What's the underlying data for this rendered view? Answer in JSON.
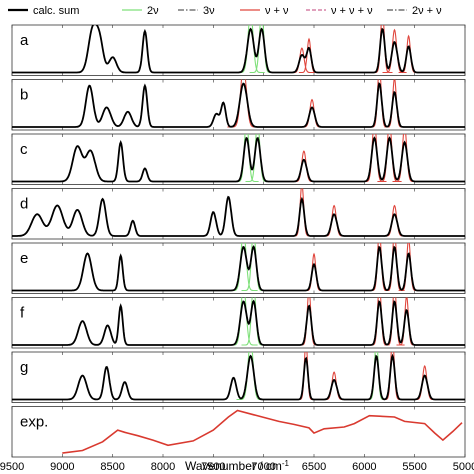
{
  "chart_data": {
    "type": "line",
    "xlabel": "Wavenumber / cm",
    "xlabel_sup": "-1",
    "xlim": [
      9500,
      5000
    ],
    "x_reversed": true,
    "x_ticks": [
      9500,
      9000,
      8500,
      8000,
      7500,
      7000,
      6500,
      6000,
      5500,
      5000
    ],
    "legend": [
      {
        "label": "calc. sum",
        "color": "#000000",
        "dash": "solid",
        "width": 2.2
      },
      {
        "label": "2ν",
        "color": "#7fe07a",
        "dash": "solid",
        "width": 1.2
      },
      {
        "label": "3ν",
        "color": "#333333",
        "dash": "dashdot",
        "width": 1.0
      },
      {
        "label": "ν + ν",
        "color": "#e0473e",
        "dash": "solid",
        "width": 1.2
      },
      {
        "label": "ν + ν + ν",
        "color": "#c0407a",
        "dash": "dashed",
        "width": 1.0
      },
      {
        "label": "2ν + ν",
        "color": "#2a2a2a",
        "dash": "dashdot",
        "width": 1.0
      }
    ],
    "panels": [
      {
        "label": "a",
        "peaks": [
          {
            "x": 8700,
            "h": 0.95,
            "w": 45,
            "c": "sum"
          },
          {
            "x": 8630,
            "h": 0.7,
            "w": 40,
            "c": "sum"
          },
          {
            "x": 8500,
            "h": 0.35,
            "w": 40,
            "c": "sum"
          },
          {
            "x": 8180,
            "h": 0.95,
            "w": 25,
            "c": "sum"
          },
          {
            "x": 7130,
            "h": 1.0,
            "w": 35,
            "c": "2v"
          },
          {
            "x": 7020,
            "h": 1.0,
            "w": 30,
            "c": "2v"
          },
          {
            "x": 6620,
            "h": 0.4,
            "w": 30,
            "c": "vv"
          },
          {
            "x": 6550,
            "h": 0.55,
            "w": 25,
            "c": "vv"
          },
          {
            "x": 5820,
            "h": 1.0,
            "w": 25,
            "c": "vv"
          },
          {
            "x": 5700,
            "h": 0.7,
            "w": 30,
            "c": "vv"
          },
          {
            "x": 5560,
            "h": 0.6,
            "w": 25,
            "c": "vv"
          }
        ]
      },
      {
        "label": "b",
        "peaks": [
          {
            "x": 8730,
            "h": 0.95,
            "w": 40,
            "c": "sum"
          },
          {
            "x": 8560,
            "h": 0.45,
            "w": 45,
            "c": "sum"
          },
          {
            "x": 8350,
            "h": 0.35,
            "w": 40,
            "c": "sum"
          },
          {
            "x": 8180,
            "h": 0.95,
            "w": 25,
            "c": "sum"
          },
          {
            "x": 7470,
            "h": 0.3,
            "w": 30,
            "c": "sum"
          },
          {
            "x": 7400,
            "h": 0.55,
            "w": 25,
            "c": "sum"
          },
          {
            "x": 7200,
            "h": 1.0,
            "w": 40,
            "c": "vv"
          },
          {
            "x": 6520,
            "h": 0.45,
            "w": 30,
            "c": "vv"
          },
          {
            "x": 5850,
            "h": 1.0,
            "w": 25,
            "c": "vv"
          },
          {
            "x": 5700,
            "h": 0.8,
            "w": 25,
            "c": "vv"
          }
        ]
      },
      {
        "label": "c",
        "peaks": [
          {
            "x": 8850,
            "h": 0.8,
            "w": 50,
            "c": "sum"
          },
          {
            "x": 8720,
            "h": 0.7,
            "w": 50,
            "c": "sum"
          },
          {
            "x": 8420,
            "h": 0.9,
            "w": 25,
            "c": "sum"
          },
          {
            "x": 8180,
            "h": 0.3,
            "w": 25,
            "c": "sum"
          },
          {
            "x": 7170,
            "h": 1.0,
            "w": 30,
            "c": "2v"
          },
          {
            "x": 7060,
            "h": 1.0,
            "w": 30,
            "c": "2v"
          },
          {
            "x": 6600,
            "h": 0.5,
            "w": 30,
            "c": "vv"
          },
          {
            "x": 5900,
            "h": 1.0,
            "w": 30,
            "c": "vv"
          },
          {
            "x": 5750,
            "h": 1.0,
            "w": 30,
            "c": "vv"
          },
          {
            "x": 5600,
            "h": 0.9,
            "w": 30,
            "c": "vv"
          }
        ]
      },
      {
        "label": "d",
        "peaks": [
          {
            "x": 9250,
            "h": 0.5,
            "w": 60,
            "c": "sum"
          },
          {
            "x": 9050,
            "h": 0.7,
            "w": 60,
            "c": "sum"
          },
          {
            "x": 8850,
            "h": 0.6,
            "w": 50,
            "c": "sum"
          },
          {
            "x": 8600,
            "h": 0.85,
            "w": 35,
            "c": "sum"
          },
          {
            "x": 8300,
            "h": 0.35,
            "w": 25,
            "c": "sum"
          },
          {
            "x": 7500,
            "h": 0.55,
            "w": 30,
            "c": "sum"
          },
          {
            "x": 7350,
            "h": 0.9,
            "w": 30,
            "c": "sum"
          },
          {
            "x": 6620,
            "h": 0.85,
            "w": 25,
            "c": "vv"
          },
          {
            "x": 6300,
            "h": 0.5,
            "w": 30,
            "c": "vv"
          },
          {
            "x": 5700,
            "h": 0.5,
            "w": 30,
            "c": "vv"
          }
        ]
      },
      {
        "label": "e",
        "peaks": [
          {
            "x": 8750,
            "h": 0.85,
            "w": 45,
            "c": "sum"
          },
          {
            "x": 8420,
            "h": 0.8,
            "w": 22,
            "c": "sum"
          },
          {
            "x": 7200,
            "h": 1.0,
            "w": 35,
            "c": "2v"
          },
          {
            "x": 7100,
            "h": 1.0,
            "w": 30,
            "c": "2v"
          },
          {
            "x": 6500,
            "h": 0.6,
            "w": 25,
            "c": "vv"
          },
          {
            "x": 5850,
            "h": 1.0,
            "w": 25,
            "c": "vv"
          },
          {
            "x": 5700,
            "h": 1.0,
            "w": 25,
            "c": "vv"
          },
          {
            "x": 5560,
            "h": 0.85,
            "w": 25,
            "c": "vv"
          }
        ]
      },
      {
        "label": "f",
        "peaks": [
          {
            "x": 8800,
            "h": 0.55,
            "w": 45,
            "c": "sum"
          },
          {
            "x": 8550,
            "h": 0.45,
            "w": 35,
            "c": "sum"
          },
          {
            "x": 8420,
            "h": 0.9,
            "w": 22,
            "c": "sum"
          },
          {
            "x": 7200,
            "h": 1.0,
            "w": 35,
            "c": "2v"
          },
          {
            "x": 7100,
            "h": 1.0,
            "w": 30,
            "c": "2v"
          },
          {
            "x": 6550,
            "h": 0.9,
            "w": 25,
            "c": "vv"
          },
          {
            "x": 5850,
            "h": 1.0,
            "w": 25,
            "c": "vv"
          },
          {
            "x": 5700,
            "h": 1.0,
            "w": 25,
            "c": "vv"
          },
          {
            "x": 5580,
            "h": 0.8,
            "w": 25,
            "c": "vv"
          }
        ]
      },
      {
        "label": "g",
        "peaks": [
          {
            "x": 8800,
            "h": 0.55,
            "w": 45,
            "c": "sum"
          },
          {
            "x": 8560,
            "h": 0.75,
            "w": 30,
            "c": "sum"
          },
          {
            "x": 8380,
            "h": 0.4,
            "w": 30,
            "c": "sum"
          },
          {
            "x": 7300,
            "h": 0.5,
            "w": 30,
            "c": "sum"
          },
          {
            "x": 7130,
            "h": 1.0,
            "w": 35,
            "c": "2v"
          },
          {
            "x": 6580,
            "h": 0.95,
            "w": 22,
            "c": "vv"
          },
          {
            "x": 6300,
            "h": 0.45,
            "w": 30,
            "c": "vv"
          },
          {
            "x": 5880,
            "h": 1.0,
            "w": 25,
            "c": "2v"
          },
          {
            "x": 5720,
            "h": 1.0,
            "w": 25,
            "c": "vv"
          },
          {
            "x": 5400,
            "h": 0.55,
            "w": 30,
            "c": "vv"
          }
        ]
      },
      {
        "label": "exp.",
        "experimental": true,
        "color": "#d93a30",
        "points": [
          [
            9000,
            0.02
          ],
          [
            8800,
            0.08
          ],
          [
            8600,
            0.28
          ],
          [
            8450,
            0.55
          ],
          [
            8380,
            0.5
          ],
          [
            8250,
            0.42
          ],
          [
            8100,
            0.32
          ],
          [
            7950,
            0.2
          ],
          [
            7700,
            0.3
          ],
          [
            7500,
            0.55
          ],
          [
            7350,
            0.85
          ],
          [
            7260,
            1.0
          ],
          [
            6850,
            0.75
          ],
          [
            6700,
            0.68
          ],
          [
            6550,
            0.6
          ],
          [
            6500,
            0.48
          ],
          [
            6400,
            0.58
          ],
          [
            6200,
            0.62
          ],
          [
            6100,
            0.7
          ],
          [
            5950,
            0.88
          ],
          [
            5700,
            0.85
          ],
          [
            5600,
            0.75
          ],
          [
            5400,
            0.7
          ],
          [
            5300,
            0.48
          ],
          [
            5220,
            0.32
          ],
          [
            5120,
            0.52
          ],
          [
            5030,
            0.72
          ]
        ]
      }
    ]
  }
}
